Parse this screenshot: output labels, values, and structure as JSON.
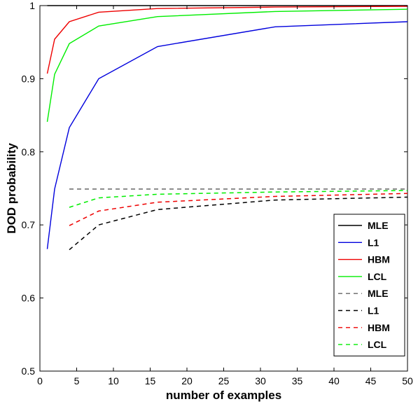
{
  "chart_data": {
    "type": "line",
    "title": "",
    "xlabel": "number of examples",
    "ylabel": "DOD probability",
    "xlim": [
      0,
      50
    ],
    "ylim": [
      0.5,
      1.0
    ],
    "xticks": [
      "0",
      "5",
      "10",
      "15",
      "20",
      "25",
      "30",
      "35",
      "40",
      "45",
      "50"
    ],
    "yticks": [
      "0.5",
      "0.6",
      "0.7",
      "0.8",
      "0.9",
      "1"
    ],
    "grid": false,
    "legend_position": "bottom-right",
    "series": [
      {
        "name": "MLE",
        "color": "#000000",
        "style": "solid",
        "x": [
          1,
          50
        ],
        "y": [
          1.0,
          1.0
        ]
      },
      {
        "name": "L1",
        "color": "#0000dd",
        "style": "solid",
        "x": [
          1,
          2,
          4,
          8,
          16,
          32,
          50
        ],
        "y": [
          0.667,
          0.749,
          0.833,
          0.9,
          0.944,
          0.971,
          0.978
        ]
      },
      {
        "name": "HBM",
        "color": "#ee0000",
        "style": "solid",
        "x": [
          1,
          2,
          4,
          8,
          16,
          32,
          50
        ],
        "y": [
          0.907,
          0.954,
          0.978,
          0.991,
          0.996,
          0.998,
          0.999
        ]
      },
      {
        "name": "LCL",
        "color": "#00ee00",
        "style": "solid",
        "x": [
          1,
          2,
          4,
          8,
          16,
          32,
          50
        ],
        "y": [
          0.841,
          0.906,
          0.948,
          0.972,
          0.985,
          0.992,
          0.995
        ]
      },
      {
        "name": "MLE",
        "color": "#666666",
        "style": "dashed",
        "x": [
          4,
          50
        ],
        "y": [
          0.749,
          0.749
        ]
      },
      {
        "name": "L1",
        "color": "#000000",
        "style": "dashed",
        "x": [
          4,
          8,
          16,
          32,
          50
        ],
        "y": [
          0.666,
          0.7,
          0.721,
          0.734,
          0.738
        ]
      },
      {
        "name": "HBM",
        "color": "#ee0000",
        "style": "dashed",
        "x": [
          4,
          8,
          16,
          32,
          50
        ],
        "y": [
          0.699,
          0.719,
          0.731,
          0.739,
          0.743
        ]
      },
      {
        "name": "LCL",
        "color": "#00ee00",
        "style": "dashed",
        "x": [
          4,
          8,
          16,
          32,
          50
        ],
        "y": [
          0.724,
          0.737,
          0.742,
          0.745,
          0.747
        ]
      }
    ]
  }
}
